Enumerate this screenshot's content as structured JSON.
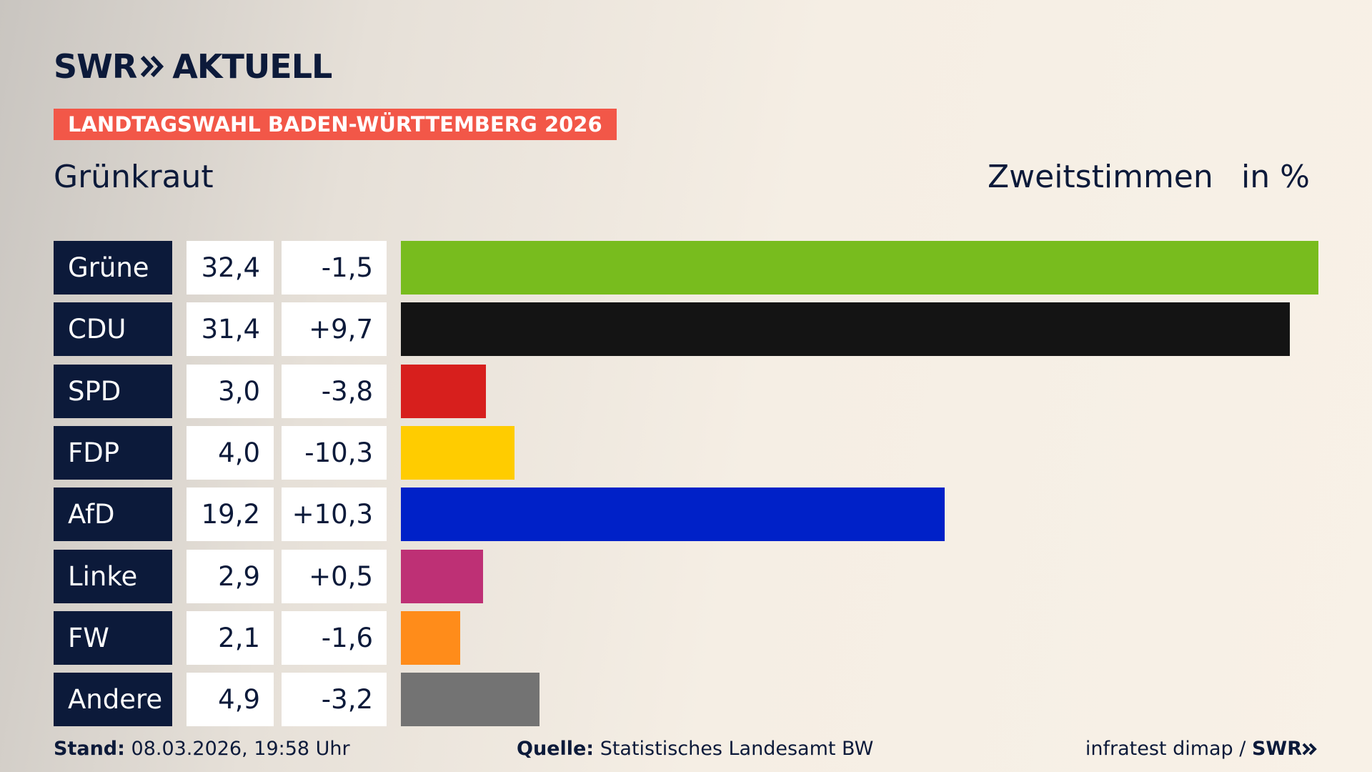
{
  "logo": {
    "brand": "SWR",
    "product": "AKTUELL"
  },
  "badge": "LANDTAGSWAHL BADEN-WÜRTTEMBERG 2026",
  "chart_data": {
    "type": "bar",
    "orientation": "horizontal",
    "title": "Grünkraut",
    "measure": "Zweitstimmen",
    "unit": "in %",
    "categories": [
      "Grüne",
      "CDU",
      "SPD",
      "FDP",
      "AfD",
      "Linke",
      "FW",
      "Andere"
    ],
    "values": [
      32.4,
      31.4,
      3.0,
      4.0,
      19.2,
      2.9,
      2.1,
      4.9
    ],
    "value_labels": [
      "32,4",
      "31,4",
      "3,0",
      "4,0",
      "19,2",
      "2,9",
      "2,1",
      "4,9"
    ],
    "changes": [
      {
        "value": -1.5,
        "label": "-1,5"
      },
      {
        "value": 9.7,
        "label": "+9,7"
      },
      {
        "value": -3.8,
        "label": "-3,8"
      },
      {
        "value": -10.3,
        "label": "-10,3"
      },
      {
        "value": 10.3,
        "label": "+10,3"
      },
      {
        "value": 0.5,
        "label": "+0,5"
      },
      {
        "value": -1.6,
        "label": "-1,6"
      },
      {
        "value": -3.2,
        "label": "-3,2"
      }
    ],
    "colors": [
      "#78bc1e",
      "#141414",
      "#d71f1d",
      "#ffcc00",
      "#0021c8",
      "#be3075",
      "#ff8c1a",
      "#737373"
    ]
  },
  "footer": {
    "stand_label": "Stand:",
    "stand": "08.03.2026, 19:58 Uhr",
    "source_label": "Quelle:",
    "source": "Statistisches Landesamt BW",
    "credit": "infratest dimap / ",
    "credit_brand": "SWR"
  }
}
